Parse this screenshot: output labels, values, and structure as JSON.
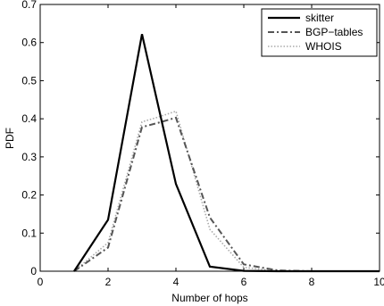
{
  "chart_data": {
    "type": "line",
    "title": "",
    "xlabel": "Number of hops",
    "ylabel": "PDF",
    "xlim": [
      0,
      10
    ],
    "ylim": [
      0,
      0.7
    ],
    "x_ticks": [
      0,
      2,
      4,
      6,
      8,
      10
    ],
    "y_ticks": [
      0,
      0.1,
      0.2,
      0.3,
      0.4,
      0.5,
      0.6,
      0.7
    ],
    "x_tick_labels": [
      "0",
      "2",
      "4",
      "6",
      "8",
      "10"
    ],
    "y_tick_labels": [
      "0",
      "0.1",
      "0.2",
      "0.3",
      "0.4",
      "0.5",
      "0.6",
      "0.7"
    ],
    "grid": false,
    "legend_position": "top-right",
    "series": [
      {
        "name": "skitter",
        "color": "#000000",
        "style": "solid",
        "x": [
          1,
          2,
          3,
          4,
          5,
          6,
          7,
          8,
          9,
          10
        ],
        "y": [
          0.0,
          0.135,
          0.622,
          0.229,
          0.012,
          0.001,
          0.0,
          0.0,
          0.0,
          0.0
        ]
      },
      {
        "name": "BGP−tables",
        "color": "#555555",
        "style": "dashdot",
        "x": [
          1,
          2,
          3,
          3.5,
          4,
          5,
          6,
          7,
          8,
          9,
          10
        ],
        "y": [
          0.0,
          0.062,
          0.378,
          0.39,
          0.403,
          0.141,
          0.018,
          0.002,
          0.0,
          0.0,
          0.0
        ]
      },
      {
        "name": "WHOIS",
        "color": "#aaaaaa",
        "style": "dotted",
        "x": [
          1,
          2,
          3,
          3.5,
          4,
          5,
          6,
          7,
          8,
          9,
          10
        ],
        "y": [
          0.0,
          0.075,
          0.392,
          0.405,
          0.42,
          0.11,
          0.01,
          0.0,
          0.0,
          0.0,
          0.0
        ]
      }
    ]
  }
}
